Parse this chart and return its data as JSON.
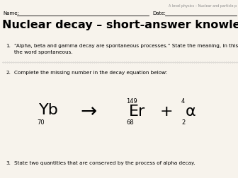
{
  "bg_color": "#f7f3ec",
  "header_text": "A level physics – Nuclear and particle p",
  "name_label": "Name:",
  "date_label": "Date:",
  "title": "Nuclear decay – short-answer knowledge test",
  "q1_number": "1.",
  "q1_text": "“Alpha, beta and gamma decay are spontaneous processes.” State the meaning, in this context, of",
  "q1_text2": "the word spontaneous.",
  "q2_number": "2.",
  "q2_text": "Complete the missing number in the decay equation below:",
  "eq_Yb": "Yb",
  "eq_Yb_bottom": "70",
  "eq_arrow": "→",
  "eq_Er_top": "149",
  "eq_Er": "Er",
  "eq_Er_bottom": "68",
  "eq_plus": "+",
  "eq_alpha_top": "4",
  "eq_alpha": "α",
  "eq_alpha_bottom": "2",
  "q3_number": "3.",
  "q3_text": "State two quantities that are conserved by the process of alpha decay.",
  "header_fontsize": 3.5,
  "nameline_fontsize": 5.0,
  "title_fontsize": 11.5,
  "body_fontsize": 5.2,
  "eq_fontsize": 16,
  "eq_small_fontsize": 6.0
}
